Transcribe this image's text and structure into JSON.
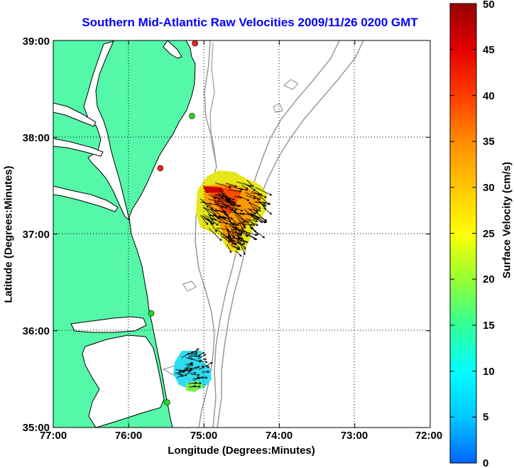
{
  "title": "Southern Mid-Atlantic Raw Velocities 2009/11/26 0200 GMT",
  "axes": {
    "xlabel": "Longitude (Degrees:Minutes)",
    "ylabel": "Latitude (Degrees:Minutes)",
    "x_ticks": [
      "77:00",
      "76:00",
      "75:00",
      "74:00",
      "73:00",
      "72:00"
    ],
    "y_ticks": [
      "39:00",
      "38:00",
      "37:00",
      "36:00",
      "35:00"
    ],
    "xlim": [
      -77,
      -72
    ],
    "ylim": [
      35,
      39
    ],
    "grid": "dotted"
  },
  "colorbar": {
    "label": "Surface Velocity (cm/s)",
    "ticks": [
      "0",
      "5",
      "10",
      "15",
      "20",
      "25",
      "30",
      "35",
      "40",
      "45",
      "50"
    ],
    "range": [
      0,
      50
    ],
    "colormap": [
      "#0064ff",
      "#00c8ff",
      "#00ffff",
      "#32ff96",
      "#96ff32",
      "#ffff00",
      "#ffc800",
      "#ff8c00",
      "#ff3c00",
      "#e60000",
      "#960000"
    ]
  },
  "colors": {
    "land": "#55f7a8",
    "coastline": "#000000",
    "bathymetry": "#999999",
    "station_active": "#22dd22",
    "station_inactive": "#ee2222",
    "title": "#0000ff"
  },
  "stations": [
    {
      "lon": -75.12,
      "lat": 38.97,
      "status": "inactive"
    },
    {
      "lon": -75.16,
      "lat": 38.22,
      "status": "active"
    },
    {
      "lon": -75.58,
      "lat": 37.68,
      "status": "inactive"
    },
    {
      "lon": -75.7,
      "lat": 36.18,
      "status": "active"
    },
    {
      "lon": -75.49,
      "lat": 35.26,
      "status": "active"
    }
  ],
  "velocity_regions": [
    {
      "name": "northern",
      "speed_range_cm_s": [
        15,
        50
      ]
    },
    {
      "name": "southern",
      "speed_range_cm_s": [
        5,
        25
      ]
    }
  ]
}
